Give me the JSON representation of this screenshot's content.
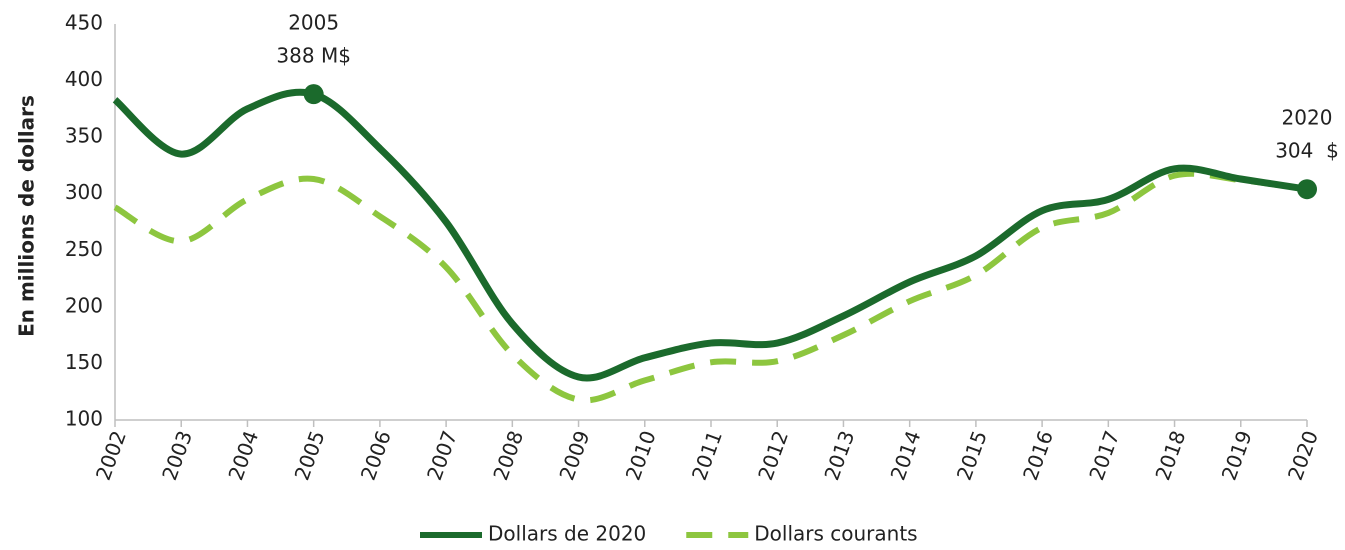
{
  "chart_data": {
    "type": "line",
    "y_label": "En millions de dollars",
    "categories": [
      "2002",
      "2003",
      "2004",
      "2005",
      "2006",
      "2007",
      "2008",
      "2009",
      "2010",
      "2011",
      "2012",
      "2013",
      "2014",
      "2015",
      "2016",
      "2017",
      "2018",
      "2019",
      "2020"
    ],
    "series": [
      {
        "name": "Dollars de 2020",
        "color": "#1b6a2c",
        "dash": false,
        "values": [
          383,
          335,
          375,
          388,
          340,
          275,
          185,
          138,
          155,
          168,
          168,
          192,
          222,
          245,
          285,
          295,
          322,
          313,
          304
        ]
      },
      {
        "name": "Dollars courants",
        "color": "#8dc63f",
        "dash": true,
        "values": [
          288,
          258,
          295,
          313,
          280,
          235,
          158,
          118,
          135,
          151,
          152,
          175,
          205,
          228,
          270,
          283,
          316,
          312,
          304
        ]
      }
    ],
    "annotations": [
      {
        "lines": [
          "2005",
          "388 M$"
        ]
      },
      {
        "lines": [
          "2020",
          "304  $"
        ]
      }
    ],
    "ylim": [
      100,
      450
    ],
    "yticks": [
      100,
      150,
      200,
      250,
      300,
      350,
      400,
      450
    ],
    "grid": false,
    "legend": "bottom"
  }
}
